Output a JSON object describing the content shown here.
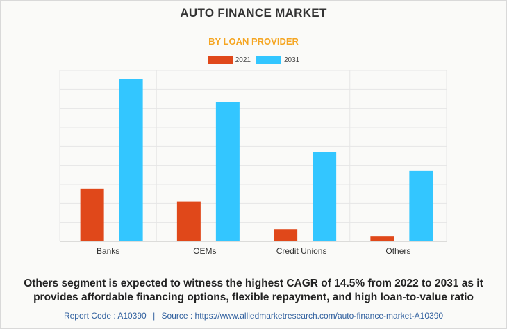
{
  "chart_data": {
    "type": "bar",
    "title": "AUTO FINANCE MARKET",
    "subtitle": "BY LOAN PROVIDER",
    "categories": [
      "Banks",
      "OEMs",
      "Credit Unions",
      "Others"
    ],
    "series": [
      {
        "name": "2021",
        "color": "#e0481a",
        "values": [
          2.75,
          2.1,
          0.65,
          0.25
        ]
      },
      {
        "name": "2031",
        "color": "#33c6ff",
        "values": [
          8.55,
          7.35,
          4.7,
          3.7
        ]
      }
    ],
    "ylim": [
      0,
      9
    ],
    "grid": true,
    "legend_position": "top-center",
    "xlabel": "",
    "ylabel": ""
  },
  "summary": "Others segment is expected to witness the highest CAGR of 14.5% from 2022 to 2031 as it provides affordable financing options, flexible repayment, and high loan-to-value ratio",
  "footer": {
    "report_code": "Report Code : A10390",
    "separator": "|",
    "source": "Source : https://www.alliedmarketresearch.com/auto-finance-market-A10390"
  },
  "colors": {
    "title": "#333333",
    "subtitle": "#f5a623",
    "footer": "#2f5f9e"
  }
}
